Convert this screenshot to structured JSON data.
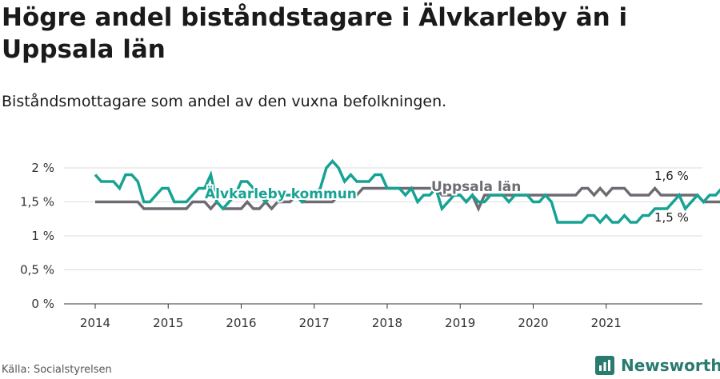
{
  "title": "Högre andel biståndstagare i Älvkarleby än i Uppsala län",
  "subtitle": "Biståndsmottagare som andel av den vuxna befolkningen.",
  "source": "Källa: Socialstyrelsen",
  "brand": {
    "name": "Newsworthy",
    "icon": "newsworthy-logo-icon",
    "color": "#2a7a6f"
  },
  "chart_data": {
    "type": "line",
    "title": "Högre andel biståndstagare i Älvkarleby än i Uppsala län",
    "subtitle": "Biståndsmottagare som andel av den vuxna befolkningen.",
    "xlabel": "",
    "ylabel": "",
    "xlim": [
      "2013-12",
      "2022-01"
    ],
    "ylim": [
      0,
      2
    ],
    "grid": true,
    "y_ticks": [
      {
        "value": 0,
        "label": "0 %"
      },
      {
        "value": 0.5,
        "label": "0,5 %"
      },
      {
        "value": 1,
        "label": "1 %"
      },
      {
        "value": 1.5,
        "label": "1,5 %"
      },
      {
        "value": 2,
        "label": "2 %"
      }
    ],
    "x_ticks": [
      "2014",
      "2015",
      "2016",
      "2017",
      "2018",
      "2019",
      "2020",
      "2021"
    ],
    "start": "2014-01",
    "series": [
      {
        "name": "Älvkarleby kommun",
        "color": "#16a394",
        "end_label": "1,6 %",
        "values": [
          1.9,
          1.8,
          1.8,
          1.8,
          1.7,
          1.9,
          1.9,
          1.8,
          1.5,
          1.5,
          1.6,
          1.7,
          1.7,
          1.5,
          1.5,
          1.5,
          1.6,
          1.7,
          1.7,
          1.9,
          1.5,
          1.4,
          1.5,
          1.6,
          1.8,
          1.8,
          1.7,
          1.6,
          1.5,
          1.6,
          1.6,
          1.6,
          1.6,
          1.6,
          1.5,
          1.6,
          1.6,
          1.7,
          2.0,
          2.1,
          2.0,
          1.8,
          1.9,
          1.8,
          1.8,
          1.8,
          1.9,
          1.9,
          1.7,
          1.7,
          1.7,
          1.6,
          1.7,
          1.5,
          1.6,
          1.6,
          1.7,
          1.4,
          1.5,
          1.6,
          1.6,
          1.5,
          1.6,
          1.5,
          1.5,
          1.6,
          1.6,
          1.6,
          1.5,
          1.6,
          1.6,
          1.6,
          1.5,
          1.5,
          1.6,
          1.5,
          1.2,
          1.2,
          1.2,
          1.2,
          1.2,
          1.3,
          1.3,
          1.2,
          1.3,
          1.2,
          1.2,
          1.3,
          1.2,
          1.2,
          1.3,
          1.3,
          1.4,
          1.4,
          1.4,
          1.5,
          1.6,
          1.4,
          1.5,
          1.6,
          1.5,
          1.6,
          1.6,
          1.7,
          1.6
        ]
      },
      {
        "name": "Uppsala län",
        "color": "#6e6b72",
        "end_label": "1,5 %",
        "values": [
          1.5,
          1.5,
          1.5,
          1.5,
          1.5,
          1.5,
          1.5,
          1.5,
          1.4,
          1.4,
          1.4,
          1.4,
          1.4,
          1.4,
          1.4,
          1.4,
          1.5,
          1.5,
          1.5,
          1.4,
          1.5,
          1.4,
          1.4,
          1.4,
          1.4,
          1.5,
          1.4,
          1.4,
          1.5,
          1.4,
          1.5,
          1.5,
          1.5,
          1.6,
          1.5,
          1.5,
          1.5,
          1.5,
          1.5,
          1.5,
          1.6,
          1.6,
          1.6,
          1.6,
          1.7,
          1.7,
          1.7,
          1.7,
          1.7,
          1.7,
          1.7,
          1.7,
          1.7,
          1.7,
          1.7,
          1.7,
          1.7,
          1.6,
          1.6,
          1.6,
          1.6,
          1.5,
          1.6,
          1.4,
          1.6,
          1.6,
          1.6,
          1.6,
          1.6,
          1.6,
          1.6,
          1.6,
          1.6,
          1.6,
          1.6,
          1.6,
          1.6,
          1.6,
          1.6,
          1.6,
          1.7,
          1.7,
          1.6,
          1.7,
          1.6,
          1.7,
          1.7,
          1.7,
          1.6,
          1.6,
          1.6,
          1.6,
          1.7,
          1.6,
          1.6,
          1.6,
          1.6,
          1.6,
          1.6,
          1.6,
          1.5,
          1.5,
          1.5,
          1.5,
          1.5
        ]
      }
    ]
  }
}
